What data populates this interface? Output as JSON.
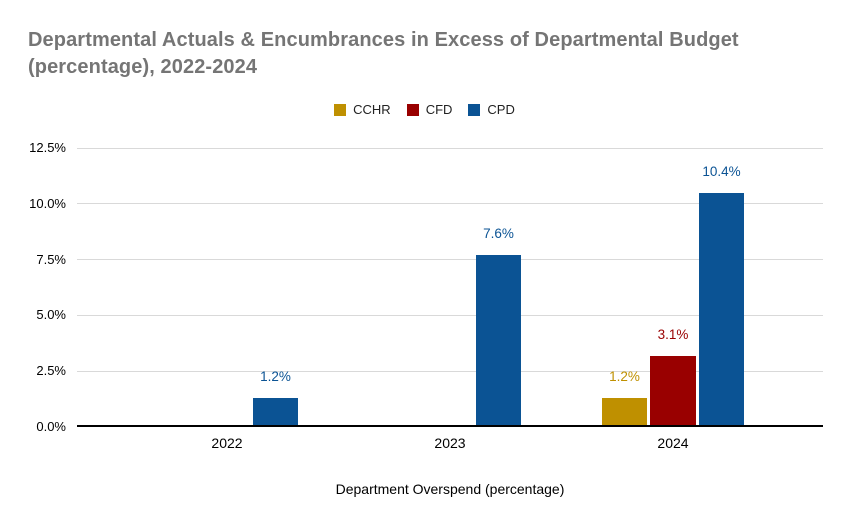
{
  "chart_data": {
    "type": "bar",
    "title": "Departmental Actuals & Encumbrances in Excess of Departmental Budget (percentage), 2022-2024",
    "xlabel": "Department Overspend (percentage)",
    "ylabel": "",
    "categories": [
      "2022",
      "2023",
      "2024"
    ],
    "series": [
      {
        "name": "CCHR",
        "color": "#bf9000",
        "values": [
          null,
          null,
          1.2
        ]
      },
      {
        "name": "CFD",
        "color": "#990000",
        "values": [
          null,
          null,
          3.1
        ]
      },
      {
        "name": "CPD",
        "color": "#0b5394",
        "values": [
          1.2,
          7.6,
          10.4
        ]
      }
    ],
    "data_labels": {
      "CCHR": [
        null,
        null,
        "1.2%"
      ],
      "CFD": [
        null,
        null,
        "3.1%"
      ],
      "CPD": [
        "1.2%",
        "7.6%",
        "10.4%"
      ]
    },
    "y_ticks": [
      "0.0%",
      "2.5%",
      "5.0%",
      "7.5%",
      "10.0%",
      "12.5%"
    ],
    "y_tick_values": [
      0,
      2.5,
      5,
      7.5,
      10,
      12.5
    ],
    "ylim": [
      0,
      12.5
    ],
    "grid": true,
    "legend_position": "top",
    "title_color": "#757575",
    "gridline_color": "#d9d9d9",
    "axis_color": "#000000"
  }
}
